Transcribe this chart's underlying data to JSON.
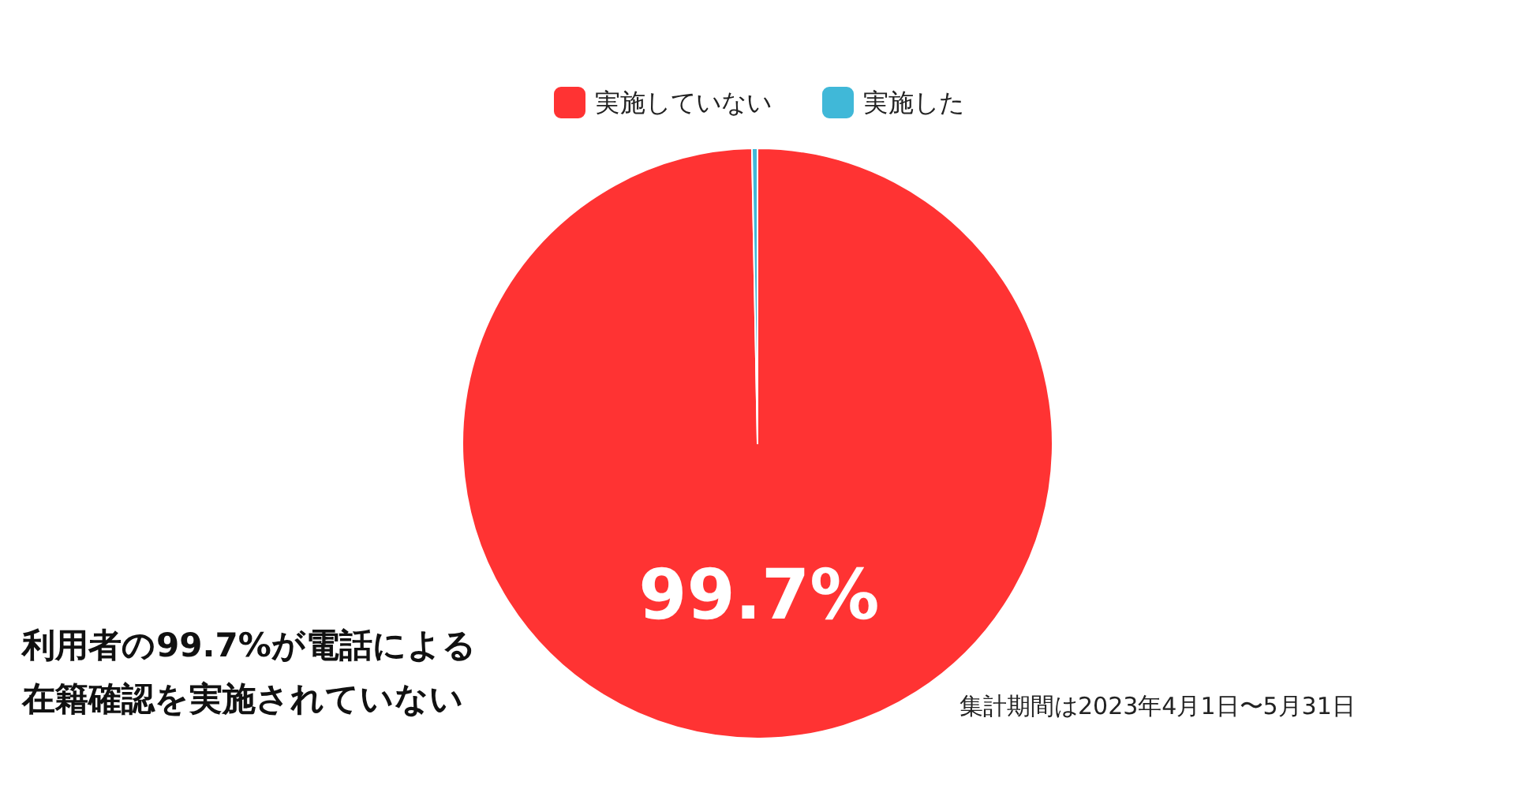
{
  "chart_data": {
    "type": "pie",
    "categories": [
      "実施していない",
      "実施した"
    ],
    "values": [
      99.7,
      0.3
    ],
    "colors": [
      "#ff3333",
      "#40b8d8"
    ],
    "value_labels": [
      "99.7%",
      null
    ],
    "legend": "top",
    "annotations": [
      "利用者の99.7%が電話による在籍確認を実施されていない",
      "集計期間は2023年4月1日〜5月31日"
    ]
  }
}
